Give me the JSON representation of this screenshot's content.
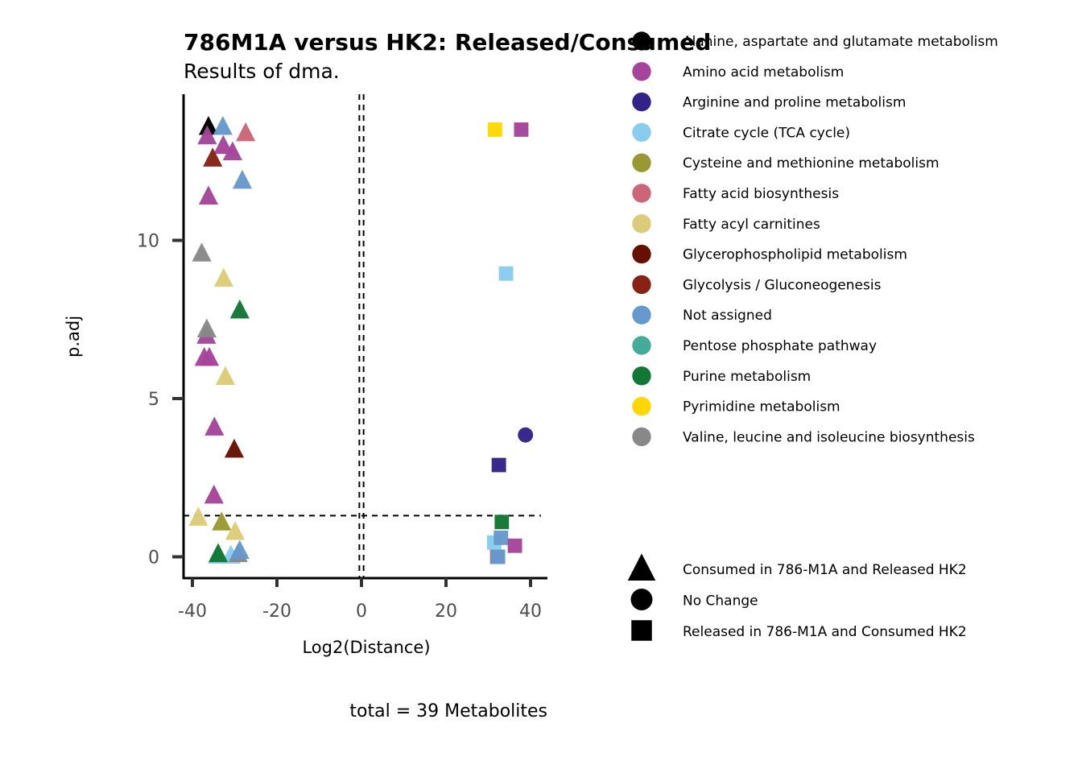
{
  "chart_data": {
    "type": "scatter",
    "title": "786M1A versus HK2: Released/Consumed",
    "subtitle": "Results of dma.",
    "xlabel": "Log2(Distance)",
    "ylabel": "p.adj",
    "caption": "total = 39 Metabolites",
    "xlim": [
      -42,
      44
    ],
    "ylim": [
      -0.7,
      14.6
    ],
    "xticks": [
      "-40",
      "-20",
      "0",
      "20",
      "40"
    ],
    "xtick_values": [
      -40,
      -20,
      0,
      20,
      40
    ],
    "yticks": [
      "0",
      "5",
      "10"
    ],
    "ytick_values": [
      0,
      5,
      10
    ],
    "vlines": [
      -0.5,
      0.5
    ],
    "hline": 1.3,
    "grid": false,
    "legend_position": "right",
    "color_legend": [
      {
        "label": "Alanine, aspartate and glutamate metabolism",
        "color": "#000000"
      },
      {
        "label": "Amino acid metabolism",
        "color": "#A5449A"
      },
      {
        "label": "Arginine and proline metabolism",
        "color": "#332288"
      },
      {
        "label": "Citrate cycle (TCA cycle)",
        "color": "#88CCEE"
      },
      {
        "label": "Cysteine and methionine metabolism",
        "color": "#999933"
      },
      {
        "label": "Fatty acid biosynthesis",
        "color": "#CC6677"
      },
      {
        "label": "Fatty acyl carnitines",
        "color": "#DDCC77"
      },
      {
        "label": "Glycerophospholipid metabolism",
        "color": "#661100"
      },
      {
        "label": "Glycolysis / Gluconeogenesis",
        "color": "#882215"
      },
      {
        "label": "Not assigned",
        "color": "#6699CC"
      },
      {
        "label": "Pentose phosphate pathway",
        "color": "#44AA99"
      },
      {
        "label": "Purine metabolism",
        "color": "#117733"
      },
      {
        "label": "Pyrimidine metabolism",
        "color": "#FFD700"
      },
      {
        "label": "Valine, leucine and isoleucine biosynthesis",
        "color": "#888888"
      }
    ],
    "shape_legend": [
      {
        "label": "Consumed in 786-M1A  and Released HK2",
        "shape": "triangle"
      },
      {
        "label": "No Change",
        "shape": "circle"
      },
      {
        "label": "Released in 786-M1A and Consumed HK2",
        "shape": "square"
      }
    ],
    "points": [
      {
        "x": -36.2,
        "y": 13.6,
        "c": 0,
        "s": "triangle"
      },
      {
        "x": -32.8,
        "y": 13.6,
        "c": 9,
        "s": "triangle"
      },
      {
        "x": -36.5,
        "y": 13.3,
        "c": 1,
        "s": "triangle"
      },
      {
        "x": -27.4,
        "y": 13.4,
        "c": 5,
        "s": "triangle"
      },
      {
        "x": -32.7,
        "y": 13.0,
        "c": 1,
        "s": "triangle"
      },
      {
        "x": -30.5,
        "y": 12.8,
        "c": 1,
        "s": "triangle"
      },
      {
        "x": -35.2,
        "y": 12.6,
        "c": 8,
        "s": "triangle"
      },
      {
        "x": -28.2,
        "y": 11.9,
        "c": 9,
        "s": "triangle"
      },
      {
        "x": -36.2,
        "y": 11.4,
        "c": 1,
        "s": "triangle"
      },
      {
        "x": -37.8,
        "y": 9.6,
        "c": 13,
        "s": "triangle"
      },
      {
        "x": -32.6,
        "y": 8.8,
        "c": 6,
        "s": "triangle"
      },
      {
        "x": -28.8,
        "y": 7.8,
        "c": 11,
        "s": "triangle"
      },
      {
        "x": -36.7,
        "y": 7.0,
        "c": 1,
        "s": "triangle"
      },
      {
        "x": -36.6,
        "y": 7.2,
        "c": 13,
        "s": "triangle"
      },
      {
        "x": -37.2,
        "y": 6.3,
        "c": 1,
        "s": "triangle"
      },
      {
        "x": -36.0,
        "y": 6.3,
        "c": 1,
        "s": "triangle"
      },
      {
        "x": -32.2,
        "y": 5.7,
        "c": 6,
        "s": "triangle"
      },
      {
        "x": -34.8,
        "y": 4.1,
        "c": 1,
        "s": "triangle"
      },
      {
        "x": -30.1,
        "y": 3.4,
        "c": 7,
        "s": "triangle"
      },
      {
        "x": -34.9,
        "y": 1.95,
        "c": 1,
        "s": "triangle"
      },
      {
        "x": -38.6,
        "y": 1.25,
        "c": 6,
        "s": "triangle"
      },
      {
        "x": -33.1,
        "y": 1.1,
        "c": 4,
        "s": "triangle"
      },
      {
        "x": -29.9,
        "y": 0.8,
        "c": 6,
        "s": "triangle"
      },
      {
        "x": -34.0,
        "y": 0.05,
        "c": 3,
        "s": "triangle"
      },
      {
        "x": -30.9,
        "y": 0.05,
        "c": 3,
        "s": "triangle"
      },
      {
        "x": -29.2,
        "y": 0.1,
        "c": 13,
        "s": "triangle"
      },
      {
        "x": -28.8,
        "y": 0.2,
        "c": 9,
        "s": "triangle"
      },
      {
        "x": -33.9,
        "y": 0.1,
        "c": 11,
        "s": "triangle"
      },
      {
        "x": 31.6,
        "y": 13.5,
        "c": 12,
        "s": "square"
      },
      {
        "x": 37.8,
        "y": 13.5,
        "c": 1,
        "s": "square"
      },
      {
        "x": 34.2,
        "y": 8.95,
        "c": 3,
        "s": "square"
      },
      {
        "x": 38.8,
        "y": 3.85,
        "c": 2,
        "s": "circle"
      },
      {
        "x": 32.5,
        "y": 2.9,
        "c": 2,
        "s": "square"
      },
      {
        "x": 33.2,
        "y": 1.1,
        "c": 11,
        "s": "square"
      },
      {
        "x": 31.4,
        "y": 0.45,
        "c": 3,
        "s": "square"
      },
      {
        "x": 33.0,
        "y": 0.6,
        "c": 9,
        "s": "square"
      },
      {
        "x": 36.3,
        "y": 0.35,
        "c": 1,
        "s": "square"
      },
      {
        "x": 32.1,
        "y": 0.0,
        "c": 5,
        "s": "square"
      },
      {
        "x": 32.3,
        "y": 0.0,
        "c": 9,
        "s": "square"
      }
    ]
  }
}
